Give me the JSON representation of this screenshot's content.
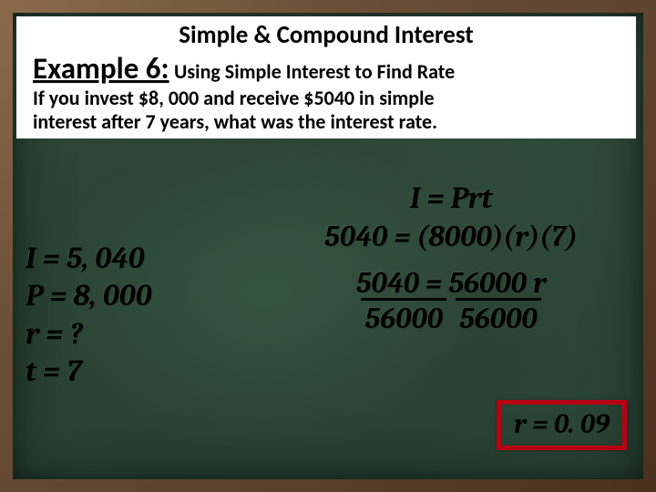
{
  "title": "Simple & Compound Interest",
  "example": {
    "label": "Example 6:",
    "subtitle": "Using Simple Interest to Find Rate",
    "problem_l1": "If you invest $8, 000 and receive $5040 in simple",
    "problem_l2": "interest after 7 years, what was the interest rate."
  },
  "givens": {
    "I": "I = 5, 040",
    "P": "P = 8, 000",
    "r": "r =  ?",
    "t": "t =  7"
  },
  "work": {
    "formula": "I = Prt",
    "sub": "5040 = (8000)(r)(7)",
    "step": "5040 = 56000 r",
    "den1": "56000",
    "den2": "56000"
  },
  "answer": "r = 0. 09",
  "colors": {
    "answer_border": "#b80012"
  }
}
